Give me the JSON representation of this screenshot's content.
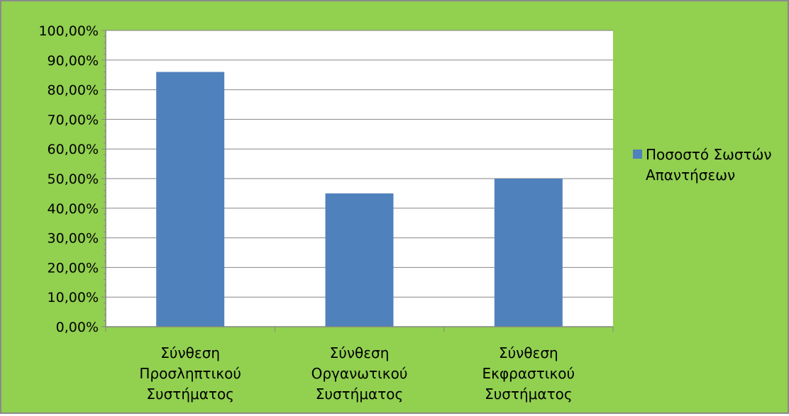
{
  "chart_data": {
    "type": "bar",
    "categories": [
      [
        "Σύνθεση",
        "Προσληπτικού",
        "Συστήματος"
      ],
      [
        "Σύνθεση",
        "Οργανωτικού",
        "Συστήματος"
      ],
      [
        "Σύνθεση",
        "Εκφραστικού",
        "Συστήματος"
      ]
    ],
    "series": [
      {
        "name": "Ποσοστό Σωστών Απαντήσεων",
        "name_lines": [
          "Ποσοστό Σωστών",
          "Απαντήσεων"
        ],
        "values": [
          0.86,
          0.45,
          0.5
        ],
        "color": "#4f81bd"
      }
    ],
    "y_ticks": [
      "0,00%",
      "10,00%",
      "20,00%",
      "30,00%",
      "40,00%",
      "50,00%",
      "60,00%",
      "70,00%",
      "80,00%",
      "90,00%",
      "100,00%"
    ],
    "ylim": [
      0,
      1
    ],
    "title": "",
    "xlabel": "",
    "ylabel": "",
    "grid": true,
    "legend_position": "right"
  },
  "colors": {
    "chart_background": "#92d050",
    "plot_background": "#ffffff",
    "gridline": "#868686",
    "axis": "#868686",
    "text": "#000000"
  }
}
